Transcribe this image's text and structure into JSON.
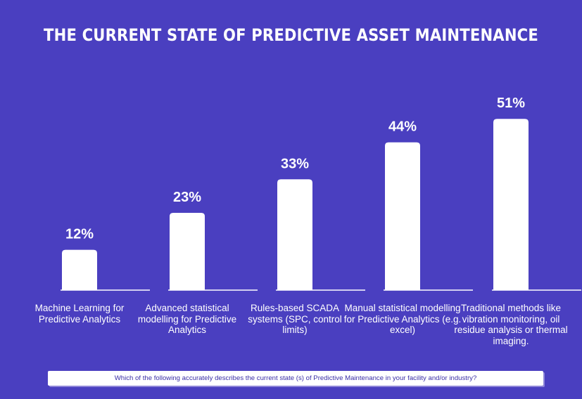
{
  "chart_data": {
    "type": "bar",
    "title": "THE CURRENT STATE OF PREDICTIVE ASSET MAINTENANCE",
    "categories": [
      "Machine Learning for Predictive Analytics",
      "Advanced statistical modelling for Predictive Analytics",
      "Rules-based SCADA systems  (SPC, control limits)",
      "Manual statistical modelling for Predictive Analytics (e.g. excel)",
      "Traditional methods like vibration monitoring, oil residue analysis or thermal imaging."
    ],
    "values": [
      12,
      23,
      33,
      44,
      51
    ],
    "data_labels": [
      "12%",
      "23%",
      "33%",
      "44%",
      "51%"
    ],
    "ylim": [
      0,
      60
    ],
    "grid": false,
    "bar_color": "#ffffff",
    "background_color": "#4a3fc0"
  },
  "footer": {
    "question": "Which of the following accurately describes the current state (s) of Predictive Maintenance in your facility and/or industry?"
  }
}
